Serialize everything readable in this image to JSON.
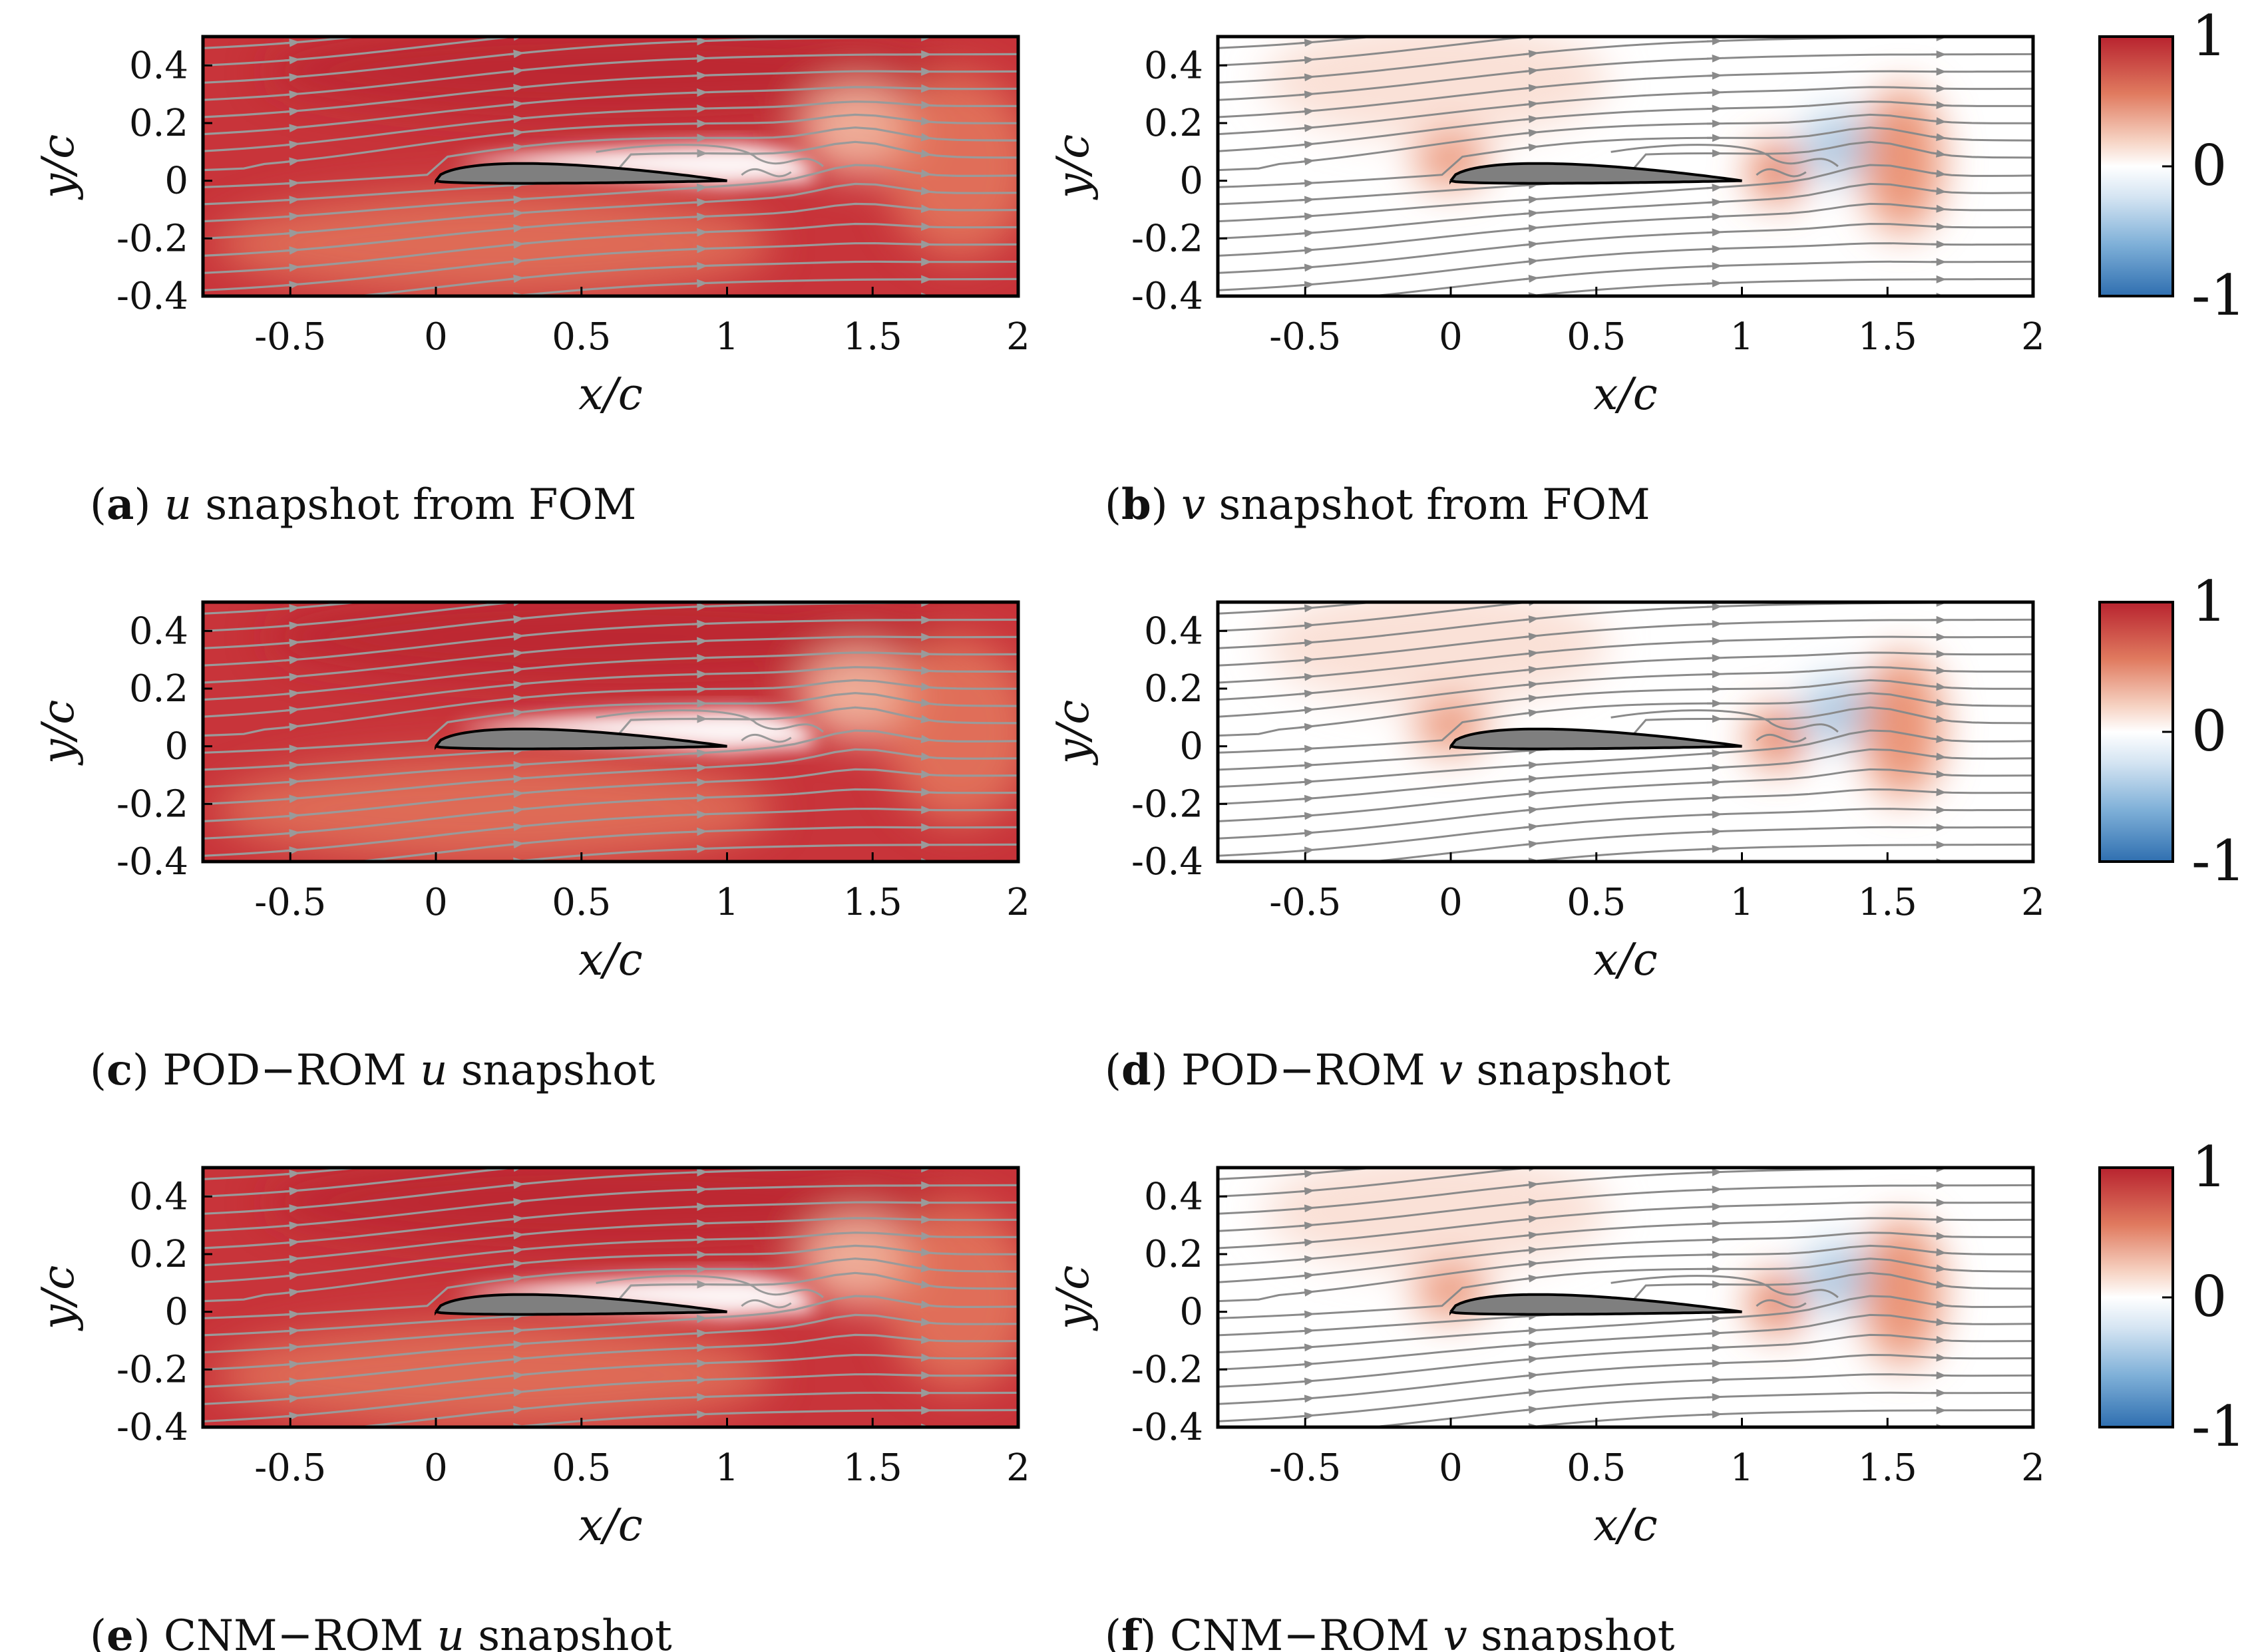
{
  "figure": {
    "description_free": true,
    "colors": {
      "red": "#c8343a",
      "red_dark": "#b8232f",
      "orange": "#e98866",
      "white": "#ffffff",
      "blue": "#3f7fba",
      "light_blue": "#a9c8e3",
      "streamline_u": "#9a9a9a",
      "streamline_v": "#8a8a8a",
      "airfoil": "#7f7f7f"
    },
    "axes_common": {
      "xlabel": "x/c",
      "ylabel": "y/c",
      "xlim": [
        -0.8,
        2.0
      ],
      "ylim": [
        -0.4,
        0.5
      ],
      "xticks": [
        "-0.5",
        "0",
        "0.5",
        "1",
        "1.5",
        "2"
      ],
      "xtick_values": [
        -0.5,
        0,
        0.5,
        1,
        1.5,
        2
      ],
      "yticks": [
        "0.4",
        "0.2",
        "0",
        "-0.2",
        "-0.4"
      ],
      "ytick_values": [
        0.4,
        0.2,
        0,
        -0.2,
        -0.4
      ]
    },
    "colorbar": {
      "ticks": [
        "1",
        "0",
        "-1"
      ],
      "tick_values": [
        1,
        0,
        -1
      ],
      "range": [
        -1,
        1
      ]
    },
    "panels": [
      {
        "letter": "a",
        "field": "u",
        "caption_before": "",
        "caption_after": " snapshot from FOM"
      },
      {
        "letter": "b",
        "field": "v",
        "caption_before": "",
        "caption_after": " snapshot from FOM"
      },
      {
        "letter": "c",
        "field": "u",
        "caption_before": "POD−ROM ",
        "caption_after": " snapshot"
      },
      {
        "letter": "d",
        "field": "v",
        "caption_before": "POD−ROM ",
        "caption_after": " snapshot"
      },
      {
        "letter": "e",
        "field": "u",
        "caption_before": "CNM−ROM ",
        "caption_after": " snapshot"
      },
      {
        "letter": "f",
        "field": "v",
        "caption_before": "CNM−ROM ",
        "caption_after": " snapshot"
      }
    ]
  },
  "chart_data": [
    {
      "type": "heatmap",
      "title": "u snapshot from FOM",
      "xlabel": "x/c",
      "ylabel": "y/c",
      "xlim": [
        -0.8,
        2.0
      ],
      "ylim": [
        -0.4,
        0.5
      ],
      "clim": [
        -1,
        1
      ]
    },
    {
      "type": "heatmap",
      "title": "v snapshot from FOM",
      "xlabel": "x/c",
      "ylabel": "y/c",
      "xlim": [
        -0.8,
        2.0
      ],
      "ylim": [
        -0.4,
        0.5
      ],
      "clim": [
        -1,
        1
      ]
    },
    {
      "type": "heatmap",
      "title": "POD−ROM u snapshot",
      "xlabel": "x/c",
      "ylabel": "y/c",
      "xlim": [
        -0.8,
        2.0
      ],
      "ylim": [
        -0.4,
        0.5
      ],
      "clim": [
        -1,
        1
      ]
    },
    {
      "type": "heatmap",
      "title": "POD−ROM v snapshot",
      "xlabel": "x/c",
      "ylabel": "y/c",
      "xlim": [
        -0.8,
        2.0
      ],
      "ylim": [
        -0.4,
        0.5
      ],
      "clim": [
        -1,
        1
      ]
    },
    {
      "type": "heatmap",
      "title": "CNM−ROM u snapshot",
      "xlabel": "x/c",
      "ylabel": "y/c",
      "xlim": [
        -0.8,
        2.0
      ],
      "ylim": [
        -0.4,
        0.5
      ],
      "clim": [
        -1,
        1
      ]
    },
    {
      "type": "heatmap",
      "title": "CNM−ROM v snapshot",
      "xlabel": "x/c",
      "ylabel": "y/c",
      "xlim": [
        -0.8,
        2.0
      ],
      "ylim": [
        -0.4,
        0.5
      ],
      "clim": [
        -1,
        1
      ]
    }
  ]
}
